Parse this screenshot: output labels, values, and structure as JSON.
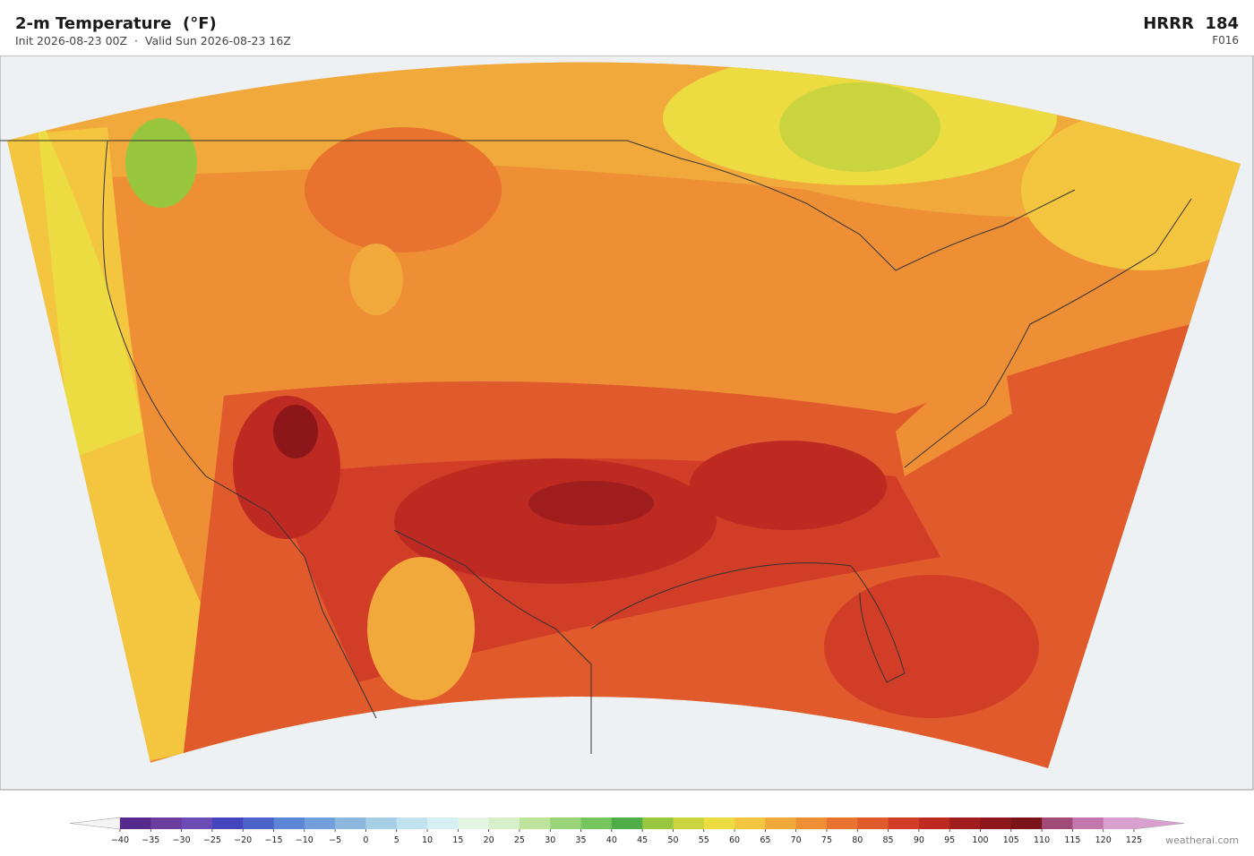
{
  "header": {
    "title": "2-m Temperature  (°F)",
    "subtitle": "Init 2026-08-23 00Z  ·  Valid Sun 2026-08-23 16Z",
    "model": "HRRR  184",
    "forecast": "F016"
  },
  "colorbar": {
    "ticks": [
      {
        "value": -40,
        "label": "−40"
      },
      {
        "value": -35,
        "label": "−35"
      },
      {
        "value": -30,
        "label": "−30"
      },
      {
        "value": -25,
        "label": "−25"
      },
      {
        "value": -20,
        "label": "−20"
      },
      {
        "value": -15,
        "label": "−15"
      },
      {
        "value": -10,
        "label": "−10"
      },
      {
        "value": -5,
        "label": "−5"
      },
      0,
      5,
      10,
      15,
      20,
      25,
      30,
      35,
      40,
      45,
      50,
      55,
      60,
      65,
      70,
      75,
      80,
      85,
      90,
      95,
      100,
      105,
      110,
      115,
      120,
      125
    ],
    "colors": [
      "#56298c",
      "#6a3d9f",
      "#6a4cb4",
      "#4545bd",
      "#4a64c9",
      "#5b85d5",
      "#729fdb",
      "#8cb8df",
      "#a6cfe6",
      "#bfe2ee",
      "#d6eff3",
      "#e4f5e4",
      "#d6efc8",
      "#bee39c",
      "#9ad479",
      "#76c45c",
      "#4fae49",
      "#98c73f",
      "#c9d43e",
      "#ecdc42",
      "#f4c640",
      "#f2a93b",
      "#ee8f36",
      "#e8732f",
      "#e05a2c",
      "#d23d27",
      "#be2a22",
      "#a01d1d",
      "#8c1619",
      "#7a1418",
      "#a04a78",
      "#c278ac",
      "#d9a0cf"
    ],
    "under_color": "#f4f4f4",
    "over_color": "#d9a0cf"
  },
  "credit": "weatherai.com"
}
